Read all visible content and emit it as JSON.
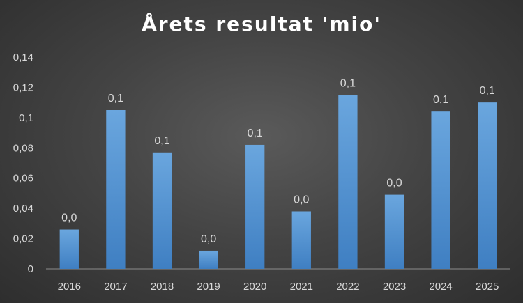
{
  "chart_data": {
    "type": "bar",
    "title": "Årets resultat 'mio'",
    "categories": [
      "2016",
      "2017",
      "2018",
      "2019",
      "2020",
      "2021",
      "2022",
      "2023",
      "2024",
      "2025"
    ],
    "values": [
      0.026,
      0.105,
      0.077,
      0.012,
      0.082,
      0.038,
      0.115,
      0.049,
      0.104,
      0.11
    ],
    "data_labels": [
      "0,0",
      "0,1",
      "0,1",
      "0,0",
      "0,1",
      "0,0",
      "0,1",
      "0,0",
      "0,1",
      "0,1"
    ],
    "y_ticks": [
      "0",
      "0,02",
      "0,04",
      "0,06",
      "0,08",
      "0,1",
      "0,12",
      "0,14"
    ],
    "ylim": [
      0,
      0.14
    ],
    "xlabel": "",
    "ylabel": "",
    "grid": false,
    "bar_color": "#5b9bd5"
  }
}
